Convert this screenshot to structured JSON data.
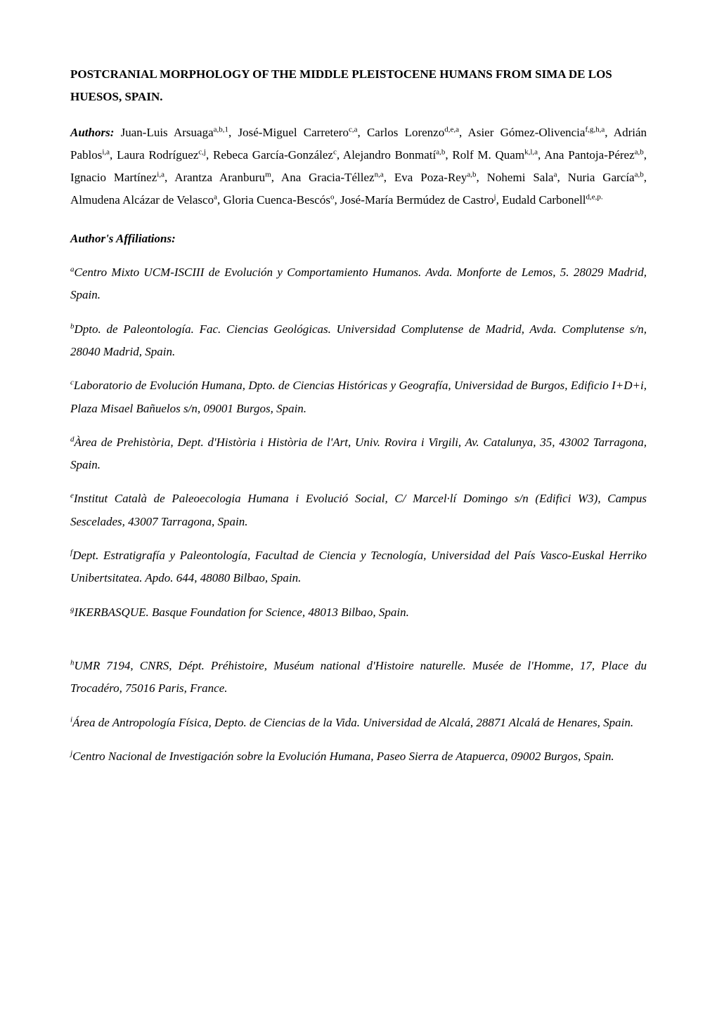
{
  "title": "POSTCRANIAL MORPHOLOGY OF THE MIDDLE PLEISTOCENE HUMANS FROM SIMA DE LOS HUESOS, SPAIN.",
  "authorsLabel": "Authors",
  "authors": [
    {
      "name": "Juan-Luis Arsuaga",
      "sup": "a,b,1"
    },
    {
      "name": "José-Miguel Carretero",
      "sup": "c,a"
    },
    {
      "name": "Carlos Lorenzo",
      "sup": "d,e,a"
    },
    {
      "name": "Asier Gómez-Olivencia",
      "sup": "f,g,h,a"
    },
    {
      "name": "Adrián Pablos",
      "sup": "i,a"
    },
    {
      "name": "Laura Rodríguez",
      "sup": "c,j"
    },
    {
      "name": "Rebeca García-González",
      "sup": "c"
    },
    {
      "name": "Alejandro Bonmatí",
      "sup": "a,b"
    },
    {
      "name": "Rolf M. Quam",
      "sup": "k,l,a"
    },
    {
      "name": "Ana Pantoja-Pérez",
      "sup": "a,b"
    },
    {
      "name": "Ignacio Martínez",
      "sup": "i,a"
    },
    {
      "name": "Arantza Aranburu",
      "sup": "m"
    },
    {
      "name": "Ana Gracia-Téllez",
      "sup": "n,a"
    },
    {
      "name": "Eva Poza-Rey",
      "sup": "a,b"
    },
    {
      "name": "Nohemi Sala",
      "sup": "a"
    },
    {
      "name": "Nuria García",
      "sup": "a,b"
    },
    {
      "name": "Almudena Alcázar de Velasco",
      "sup": "a"
    },
    {
      "name": "Gloria Cuenca-Bescós",
      "sup": "o"
    },
    {
      "name": "José-María Bermúdez de Castro",
      "sup": "j"
    },
    {
      "name": "Eudald Carbonell",
      "sup": "d,e,p."
    }
  ],
  "affiliationsHeading": "Author's Affiliations",
  "affiliations": [
    {
      "sup": "a",
      "text": "Centro Mixto UCM-ISCIII de Evolución y Comportamiento Humanos. Avda. Monforte de Lemos, 5. 28029 Madrid, Spain."
    },
    {
      "sup": "b",
      "text": "Dpto. de Paleontología. Fac. Ciencias Geológicas. Universidad Complutense de Madrid, Avda. Complutense s/n, 28040 Madrid, Spain."
    },
    {
      "sup": "c",
      "text": "Laboratorio de Evolución Humana, Dpto. de Ciencias Históricas y Geografía, Universidad de Burgos, Edificio I+D+i, Plaza Misael Bañuelos s/n, 09001 Burgos, Spain."
    },
    {
      "sup": "d",
      "text": "Àrea de Prehistòria, Dept. d'Història i Història de l'Art, Univ. Rovira i Virgili, Av. Catalunya, 35, 43002 Tarragona, Spain."
    },
    {
      "sup": "e",
      "text": "Institut Català de Paleoecologia Humana i Evolució Social, C/ Marcel·lí Domingo s/n (Edifici W3), Campus Sescelades, 43007 Tarragona, Spain."
    },
    {
      "sup": "f",
      "text": "Dept. Estratigrafía y Paleontología, Facultad de Ciencia y Tecnología, Universidad del País Vasco-Euskal Herriko Unibertsitatea. Apdo. 644, 48080 Bilbao, Spain."
    },
    {
      "sup": "g",
      "text": "IKERBASQUE. Basque Foundation for Science, 48013 Bilbao, Spain."
    }
  ],
  "affiliations2": [
    {
      "sup": "h",
      "text": "UMR 7194, CNRS, Dépt. Préhistoire, Muséum national d'Histoire naturelle. Musée de l'Homme, 17, Place du Trocadéro, 75016 Paris, France."
    },
    {
      "sup": "i",
      "text": "Área de Antropología Física, Depto. de Ciencias de la Vida. Universidad de Alcalá, 28871 Alcalá de Henares, Spain."
    },
    {
      "sup": "j",
      "text": "Centro Nacional de Investigación sobre la Evolución Humana, Paseo Sierra de Atapuerca, 09002 Burgos, Spain."
    }
  ],
  "colors": {
    "background": "#ffffff",
    "text": "#000000"
  },
  "typography": {
    "fontFamily": "Times New Roman",
    "titleFontSize": 17,
    "bodyFontSize": 17,
    "supFontSize": 11,
    "lineHeight": 1.9
  }
}
